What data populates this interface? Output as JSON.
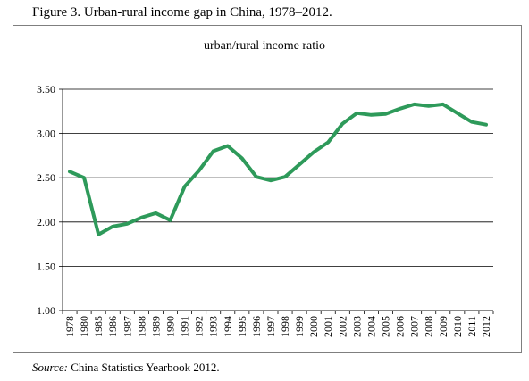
{
  "figure_title": "Figure 3. Urban-rural income gap in China, 1978–2012.",
  "source": {
    "label": "Source:",
    "text": " China Statistics Yearbook 2012."
  },
  "chart_data": {
    "type": "line",
    "title": "urban/rural income ratio",
    "xlabel": "",
    "ylabel": "",
    "ylim": [
      1.0,
      3.5
    ],
    "yticks": [
      "1.00",
      "1.50",
      "2.00",
      "2.50",
      "3.00",
      "3.50"
    ],
    "categories": [
      "1978",
      "1980",
      "1985",
      "1986",
      "1987",
      "1988",
      "1989",
      "1990",
      "1991",
      "1992",
      "1993",
      "1994",
      "1995",
      "1996",
      "1997",
      "1998",
      "1999",
      "2000",
      "2001",
      "2002",
      "2003",
      "2004",
      "2005",
      "2006",
      "2007",
      "2008",
      "2009",
      "2010",
      "2011",
      "2012"
    ],
    "series": [
      {
        "values": [
          2.57,
          2.5,
          1.86,
          1.95,
          1.98,
          2.05,
          2.1,
          2.02,
          2.4,
          2.58,
          2.8,
          2.86,
          2.72,
          2.51,
          2.47,
          2.51,
          2.65,
          2.79,
          2.9,
          3.11,
          3.23,
          3.21,
          3.22,
          3.28,
          3.33,
          3.31,
          3.33,
          3.23,
          3.13,
          3.1
        ]
      }
    ],
    "grid": true,
    "line_color": "#2e9a5a"
  }
}
